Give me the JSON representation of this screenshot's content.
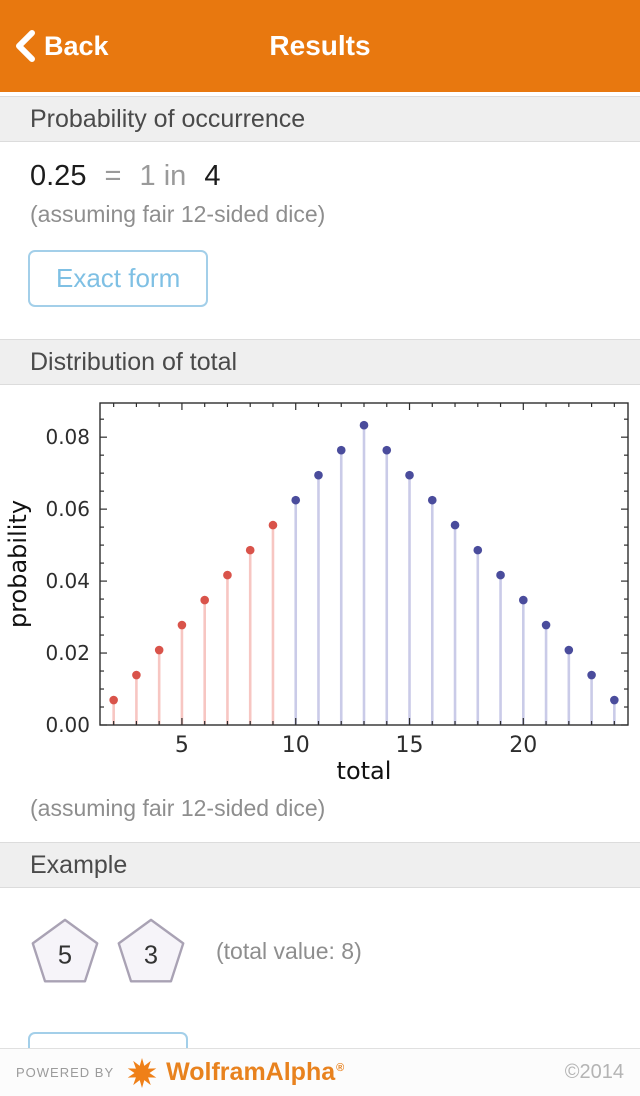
{
  "colors": {
    "header_orange": "#e8780f",
    "brand_orange": "#e8821e",
    "button_blue_text": "#7fc0e4",
    "button_blue_border": "#a3cfe9",
    "section_bar_bg": "#efefef",
    "red_dot": "#d9534a",
    "red_stem": "#f7c6c2",
    "blue_dot": "#4a4c9c",
    "blue_stem": "#cacbe8"
  },
  "header": {
    "back_label": "Back",
    "title": "Results"
  },
  "probability_section": {
    "title": "Probability of occurrence",
    "value": "0.25",
    "equals": "=",
    "ratio": "1 in",
    "ratio_value": "4",
    "assumption": "(assuming fair 12-sided dice)",
    "exact_form_button": "Exact form"
  },
  "distribution_section": {
    "title": "Distribution of total",
    "assumption": "(assuming fair 12-sided dice)"
  },
  "example_section": {
    "title": "Example",
    "dice": [
      {
        "value": "5"
      },
      {
        "value": "3"
      }
    ],
    "total_note": "(total value: 8)"
  },
  "footer": {
    "powered_by": "POWERED BY",
    "brand": "WolframAlpha",
    "registered": "®",
    "copyright": "©2014"
  },
  "chart_data": {
    "type": "stem",
    "title": "",
    "xlabel": "total",
    "ylabel": "probability",
    "xlim": [
      1.4,
      24.6
    ],
    "ylim": [
      0,
      0.0895
    ],
    "xticks": [
      5,
      10,
      15,
      20
    ],
    "yticks": [
      0,
      0.02,
      0.04,
      0.06,
      0.08
    ],
    "xminor": [
      2,
      3,
      4,
      6,
      7,
      8,
      9,
      11,
      12,
      13,
      14,
      16,
      17,
      18,
      19,
      21,
      22,
      23,
      24
    ],
    "yminor": [
      0.005,
      0.01,
      0.015,
      0.025,
      0.03,
      0.035,
      0.045,
      0.05,
      0.055,
      0.065,
      0.07,
      0.075,
      0.085
    ],
    "grid": false,
    "legend": "none",
    "series": [
      {
        "name": "totals 2-9",
        "color": "#d9534a",
        "stem_color": "#f7c6c2",
        "points": [
          [
            2,
            0.00694
          ],
          [
            3,
            0.01389
          ],
          [
            4,
            0.02083
          ],
          [
            5,
            0.02778
          ],
          [
            6,
            0.03472
          ],
          [
            7,
            0.04167
          ],
          [
            8,
            0.04861
          ],
          [
            9,
            0.05556
          ]
        ]
      },
      {
        "name": "totals 10-24",
        "color": "#4a4c9c",
        "stem_color": "#cacbe8",
        "points": [
          [
            10,
            0.0625
          ],
          [
            11,
            0.06944
          ],
          [
            12,
            0.07639
          ],
          [
            13,
            0.08333
          ],
          [
            14,
            0.07639
          ],
          [
            15,
            0.06944
          ],
          [
            16,
            0.0625
          ],
          [
            17,
            0.05556
          ],
          [
            18,
            0.04861
          ],
          [
            19,
            0.04167
          ],
          [
            20,
            0.03472
          ],
          [
            21,
            0.02778
          ],
          [
            22,
            0.02083
          ],
          [
            23,
            0.01389
          ],
          [
            24,
            0.00694
          ]
        ]
      }
    ]
  }
}
